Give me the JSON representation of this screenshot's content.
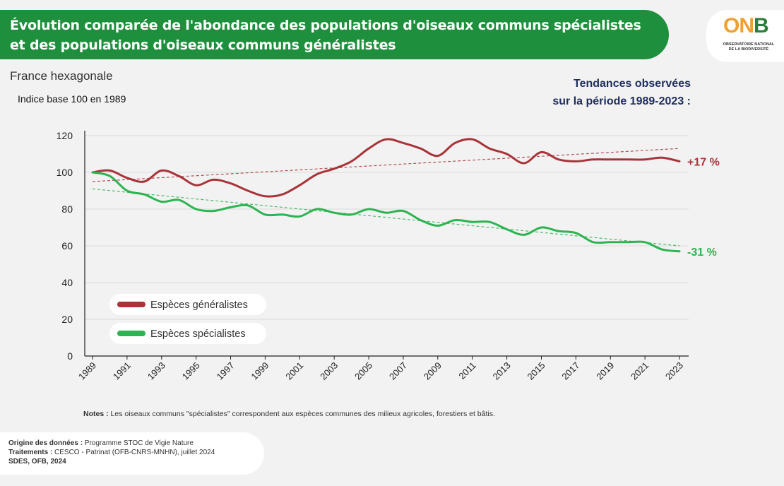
{
  "header": {
    "title_line1": "Évolution comparée de l'abondance des populations d'oiseaux communs spécialistes",
    "title_line2": "et des populations d'oiseaux communs généralistes",
    "accent_color": "#1e8f3c"
  },
  "logo": {
    "text_on": "ON",
    "text_b": "B",
    "sub_line1": "OBSERVATOIRE NATIONAL",
    "sub_line2": "DE LA BIODIVERSITÉ"
  },
  "subtitle": {
    "region": "France hexagonale",
    "index": "Indice base 100 en 1989"
  },
  "trends_header": {
    "line1": "Tendances observées",
    "line2": "sur la période 1989-2023 :"
  },
  "chart_data": {
    "type": "line",
    "xlabel": "",
    "ylabel": "",
    "ylim": [
      0,
      120
    ],
    "yticks": [
      0,
      20,
      40,
      60,
      80,
      100,
      120
    ],
    "xticks": [
      "1989",
      "1991",
      "1993",
      "1995",
      "1997",
      "1999",
      "2001",
      "2003",
      "2005",
      "2007",
      "2009",
      "2011",
      "2013",
      "2015",
      "2017",
      "2019",
      "2021",
      "2023"
    ],
    "grid": true,
    "x": [
      1989,
      1990,
      1991,
      1992,
      1993,
      1994,
      1995,
      1996,
      1997,
      1998,
      1999,
      2000,
      2001,
      2002,
      2003,
      2004,
      2005,
      2006,
      2007,
      2008,
      2009,
      2010,
      2011,
      2012,
      2013,
      2014,
      2015,
      2016,
      2017,
      2018,
      2019,
      2020,
      2021,
      2022,
      2023
    ],
    "series": [
      {
        "name": "Espèces généralistes",
        "color": "#a8343a",
        "values": [
          100,
          101,
          97,
          95,
          101,
          98,
          93,
          96,
          94,
          90,
          87,
          88,
          93,
          99,
          102,
          106,
          113,
          118,
          116,
          113,
          109,
          116,
          118,
          113,
          110,
          105,
          111,
          107,
          106,
          107,
          107,
          107,
          107,
          108,
          106
        ],
        "trend": [
          95,
          113
        ],
        "trend_label": "+17 %"
      },
      {
        "name": "Espèces spécialistes",
        "color": "#2db350",
        "values": [
          100,
          98,
          90,
          88,
          84,
          85,
          80,
          79,
          81,
          82,
          77,
          77,
          76,
          80,
          78,
          77,
          80,
          78,
          79,
          74,
          71,
          74,
          73,
          73,
          69,
          66,
          70,
          68,
          67,
          62,
          62,
          62,
          62,
          58,
          57
        ],
        "trend": [
          91,
          60
        ],
        "trend_label": "-31 %"
      }
    ],
    "legend_position": "bottom-left"
  },
  "notes": {
    "label": "Notes :",
    "text": " Les oiseaux communs \"spécialistes\" correspondent aux espèces communes des milieux agricoles, forestiers et bâtis."
  },
  "source": {
    "origin_label": "Origine des données :",
    "origin_text": " Programme STOC de Vigie Nature",
    "treat_label": "Traitements :",
    "treat_text": " CESCO - Patrinat (OFB-CNRS-MNHN), juillet 2024",
    "credit": "SDES, OFB, 2024"
  }
}
